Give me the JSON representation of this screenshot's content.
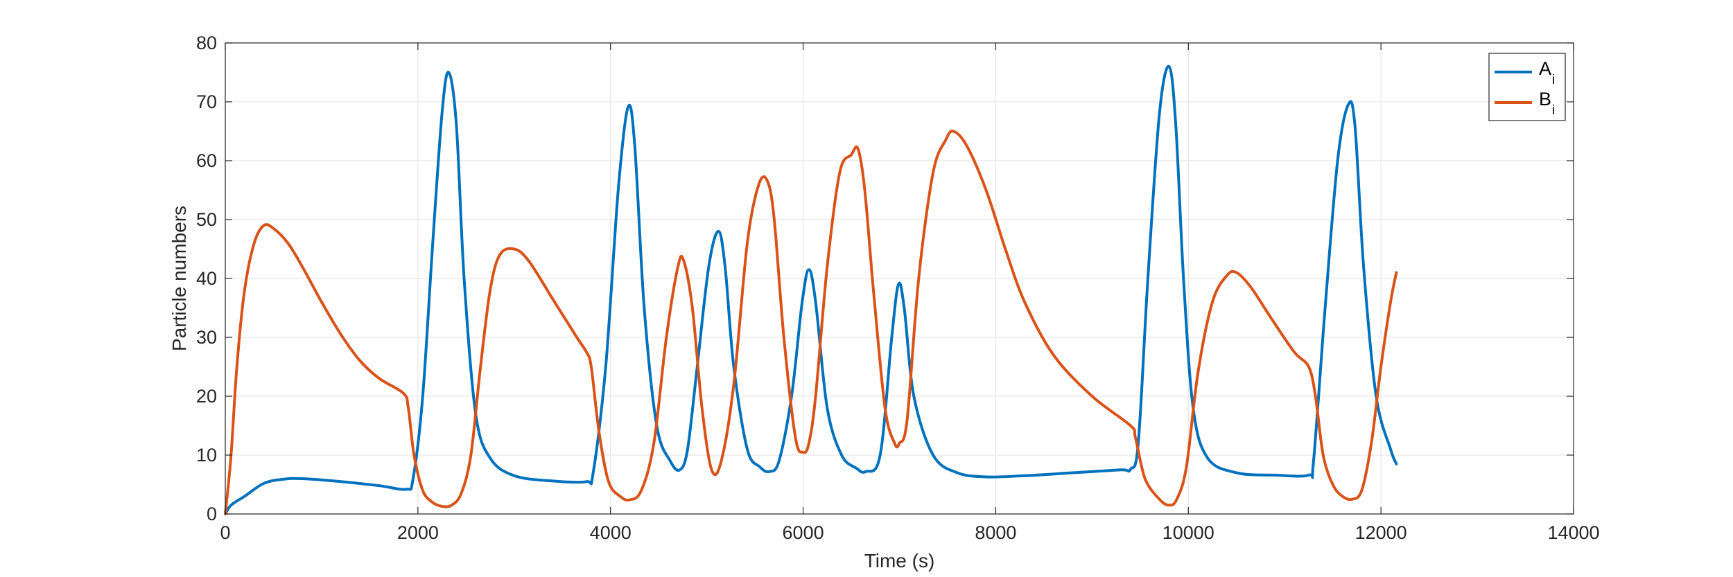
{
  "chart_data": {
    "type": "line",
    "title": "",
    "xlabel": "Time (s)",
    "ylabel": "Particle numbers",
    "xlim": [
      0,
      14000
    ],
    "ylim": [
      0,
      80
    ],
    "xticks": [
      "0",
      "2000",
      "4000",
      "6000",
      "8000",
      "10000",
      "12000",
      "14000"
    ],
    "yticks": [
      "0",
      "10",
      "20",
      "30",
      "40",
      "50",
      "60",
      "70",
      "80"
    ],
    "grid": true,
    "legend_position": "top-right",
    "series": [
      {
        "name": "A",
        "name_subscript": "i",
        "color": "#0072BD",
        "x": [
          0,
          60,
          200,
          400,
          600,
          800,
          1200,
          1600,
          1880,
          1950,
          2050,
          2150,
          2250,
          2320,
          2400,
          2480,
          2600,
          2750,
          3000,
          3400,
          3750,
          3820,
          3950,
          4080,
          4180,
          4250,
          4350,
          4480,
          4620,
          4720,
          4800,
          4900,
          5020,
          5120,
          5190,
          5280,
          5420,
          5550,
          5650,
          5750,
          5880,
          5990,
          6060,
          6130,
          6250,
          6400,
          6550,
          6650,
          6800,
          6920,
          6990,
          7050,
          7150,
          7350,
          7600,
          7900,
          8300,
          8800,
          9300,
          9400,
          9480,
          9580,
          9700,
          9800,
          9870,
          9950,
          10050,
          10200,
          10500,
          10900,
          11250,
          11300,
          11420,
          11550,
          11660,
          11730,
          11820,
          11950,
          12100,
          12160
        ],
        "y": [
          0,
          1.5,
          3,
          5.2,
          5.9,
          6.0,
          5.5,
          4.8,
          4.2,
          6,
          20,
          45,
          68,
          75,
          66,
          40,
          17,
          9.5,
          6.5,
          5.6,
          5.5,
          7,
          25,
          55,
          69,
          63,
          35,
          15,
          9,
          7.5,
          11,
          25,
          42,
          48,
          42,
          25,
          11,
          8,
          7.2,
          9,
          20,
          36,
          41.5,
          36,
          18,
          10,
          7.8,
          7.2,
          10,
          30,
          39,
          35,
          20,
          10,
          7,
          6.3,
          6.5,
          7,
          7.5,
          7.6,
          12,
          40,
          68,
          76,
          66,
          40,
          18,
          9.5,
          7,
          6.6,
          6.6,
          9,
          35,
          60,
          69.5,
          66,
          42,
          20,
          11,
          8.5
        ]
      },
      {
        "name": "B",
        "name_subscript": "i",
        "color": "#D95319",
        "x": [
          0,
          60,
          120,
          200,
          300,
          400,
          500,
          650,
          800,
          1000,
          1200,
          1400,
          1600,
          1850,
          1900,
          1960,
          2050,
          2150,
          2250,
          2350,
          2450,
          2550,
          2650,
          2750,
          2850,
          3000,
          3150,
          3400,
          3650,
          3750,
          3800,
          3880,
          3980,
          4100,
          4200,
          4320,
          4450,
          4580,
          4700,
          4760,
          4850,
          4950,
          5050,
          5150,
          5280,
          5420,
          5540,
          5630,
          5700,
          5800,
          5920,
          6000,
          6060,
          6130,
          6250,
          6380,
          6500,
          6570,
          6640,
          6730,
          6850,
          6950,
          7000,
          7080,
          7200,
          7350,
          7480,
          7560,
          7700,
          7900,
          8100,
          8300,
          8600,
          9000,
          9400,
          9450,
          9550,
          9700,
          9800,
          9880,
          9980,
          10100,
          10250,
          10400,
          10500,
          10650,
          10850,
          11100,
          11250,
          11320,
          11400,
          11500,
          11600,
          11700,
          11800,
          11900,
          12000,
          12100,
          12160
        ],
        "y": [
          0,
          10,
          25,
          38,
          46,
          49,
          48.5,
          46,
          42,
          36,
          30.5,
          26,
          23,
          20.5,
          18,
          10,
          4,
          2,
          1.3,
          1.5,
          3.5,
          10,
          25,
          38,
          44,
          45,
          43,
          36.5,
          30,
          27.5,
          25,
          14,
          5.5,
          3,
          2.4,
          4,
          12,
          30,
          42,
          43,
          35,
          18,
          7.5,
          9,
          22,
          46,
          56,
          56.5,
          50,
          30,
          13,
          10.5,
          12,
          20,
          42,
          58,
          61,
          62,
          55,
          38,
          18,
          12,
          12,
          16,
          40,
          58,
          63.5,
          65,
          62.5,
          55,
          45,
          36,
          27,
          20,
          15,
          13,
          6,
          2.5,
          1.5,
          2.5,
          8,
          24,
          36,
          40.5,
          41,
          38.5,
          33.5,
          27.5,
          25,
          20,
          10,
          5,
          3,
          2.5,
          4,
          12,
          25,
          36,
          41
        ]
      }
    ]
  }
}
